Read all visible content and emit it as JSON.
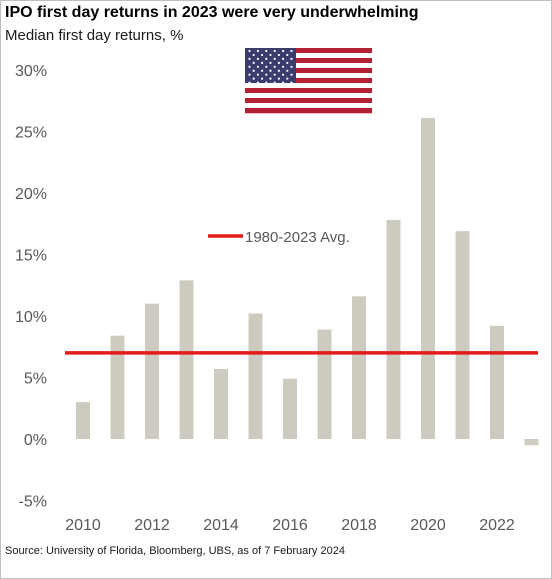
{
  "title": "IPO first day returns in 2023 were very underwhelming",
  "subtitle": "Median first day returns, %",
  "source": "Source: University of Florida, Bloomberg, UBS, as of 7 February 2024",
  "colors": {
    "bar": "#cdcbbf",
    "average_line": "#e31b1b",
    "text": "#595959",
    "flag_red": "#b22234",
    "flag_blue": "#3c3b6e"
  },
  "chart_data": {
    "type": "bar",
    "title": "IPO first day returns in 2023 were very underwhelming",
    "subtitle": "Median first day returns, %",
    "x": [
      2010,
      2011,
      2012,
      2013,
      2014,
      2015,
      2016,
      2017,
      2018,
      2019,
      2020,
      2021,
      2022,
      2023
    ],
    "x_tick_labels": [
      "2010",
      "2012",
      "2014",
      "2016",
      "2018",
      "2020",
      "2022"
    ],
    "values": [
      3.0,
      8.4,
      11.0,
      12.9,
      5.7,
      10.2,
      4.9,
      8.9,
      11.6,
      17.8,
      26.1,
      16.9,
      9.2,
      -0.5
    ],
    "ylim": [
      -5,
      30
    ],
    "y_ticks": [
      -5,
      0,
      5,
      10,
      15,
      20,
      25,
      30
    ],
    "y_tick_labels": [
      "-5%",
      "0%",
      "5%",
      "10%",
      "15%",
      "20%",
      "25%",
      "30%"
    ],
    "average_value": 7.0,
    "average_label": "1980-2023 Avg.",
    "grid": false,
    "legend": "inline-center"
  }
}
